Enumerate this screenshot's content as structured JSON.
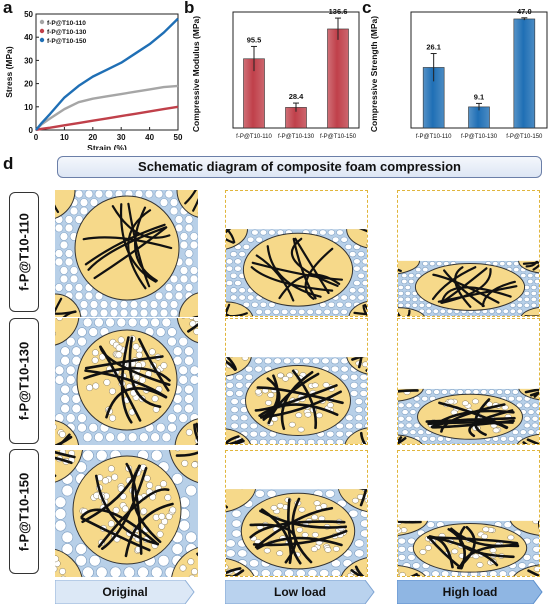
{
  "panels": {
    "a": "a",
    "b": "b",
    "c": "c",
    "d": "d"
  },
  "chart_data": [
    {
      "type": "line",
      "xlabel": "Strain (%)",
      "ylabel": "Stress (MPa)",
      "xlim": [
        0,
        50
      ],
      "ylim": [
        0,
        50
      ],
      "xticks": [
        0,
        10,
        20,
        30,
        40,
        50
      ],
      "yticks": [
        0,
        10,
        20,
        30,
        40,
        50
      ],
      "legend_position": "top-left",
      "series": [
        {
          "name": "f-P@T10-110",
          "color": "#a6a6a6",
          "x": [
            0,
            2,
            5,
            10,
            15,
            20,
            25,
            30,
            35,
            40,
            45,
            50
          ],
          "values": [
            0,
            2.5,
            5,
            9,
            12,
            13.5,
            14.5,
            15.5,
            16.5,
            17.5,
            18.5,
            19
          ]
        },
        {
          "name": "f-P@T10-130",
          "color": "#c0404a",
          "x": [
            0,
            2,
            5,
            10,
            15,
            20,
            25,
            30,
            35,
            40,
            45,
            50
          ],
          "values": [
            0,
            0.5,
            1,
            2,
            3,
            4,
            5,
            6,
            7,
            8,
            9,
            10
          ]
        },
        {
          "name": "f-P@T10-150",
          "color": "#1f6fb5",
          "x": [
            0,
            2,
            5,
            10,
            15,
            20,
            25,
            30,
            35,
            40,
            45,
            50
          ],
          "values": [
            0,
            3,
            7,
            14,
            19,
            23,
            26,
            29,
            33,
            37,
            42,
            48
          ]
        }
      ]
    },
    {
      "type": "bar",
      "ylabel": "Compressive Modulus (MPa)",
      "ylim": [
        0,
        160
      ],
      "categories": [
        "f-P@T10-110",
        "f-P@T10-130",
        "f-P@T10-150"
      ],
      "values": [
        95.5,
        28.4,
        136.6
      ],
      "value_labels": [
        "95.5",
        "28.4",
        "136.6"
      ],
      "errors": [
        17,
        6,
        15
      ],
      "color": "#c0404a"
    },
    {
      "type": "bar",
      "ylabel": "Compressive Strength (MPa)",
      "ylim": [
        0,
        50
      ],
      "categories": [
        "f-P@T10-110",
        "f-P@T10-130",
        "f-P@T10-150"
      ],
      "values": [
        26.1,
        9.1,
        47.0
      ],
      "value_labels": [
        "26.1",
        "9.1",
        "47.0"
      ],
      "errors": [
        6,
        1.5,
        0.5
      ],
      "color": "#1f6fb5"
    }
  ],
  "schematic": {
    "title": "Schematic diagram of composite foam compression",
    "rows": [
      "f-P@T10-110",
      "f-P@T10-130",
      "f-P@T10-150"
    ],
    "stages": [
      "Original",
      "Low load",
      "High load"
    ],
    "colors": {
      "matrix": "#b4cde6",
      "particle": "#f6d98a",
      "fiber": "#111111",
      "dash": "#e0b53c"
    }
  }
}
